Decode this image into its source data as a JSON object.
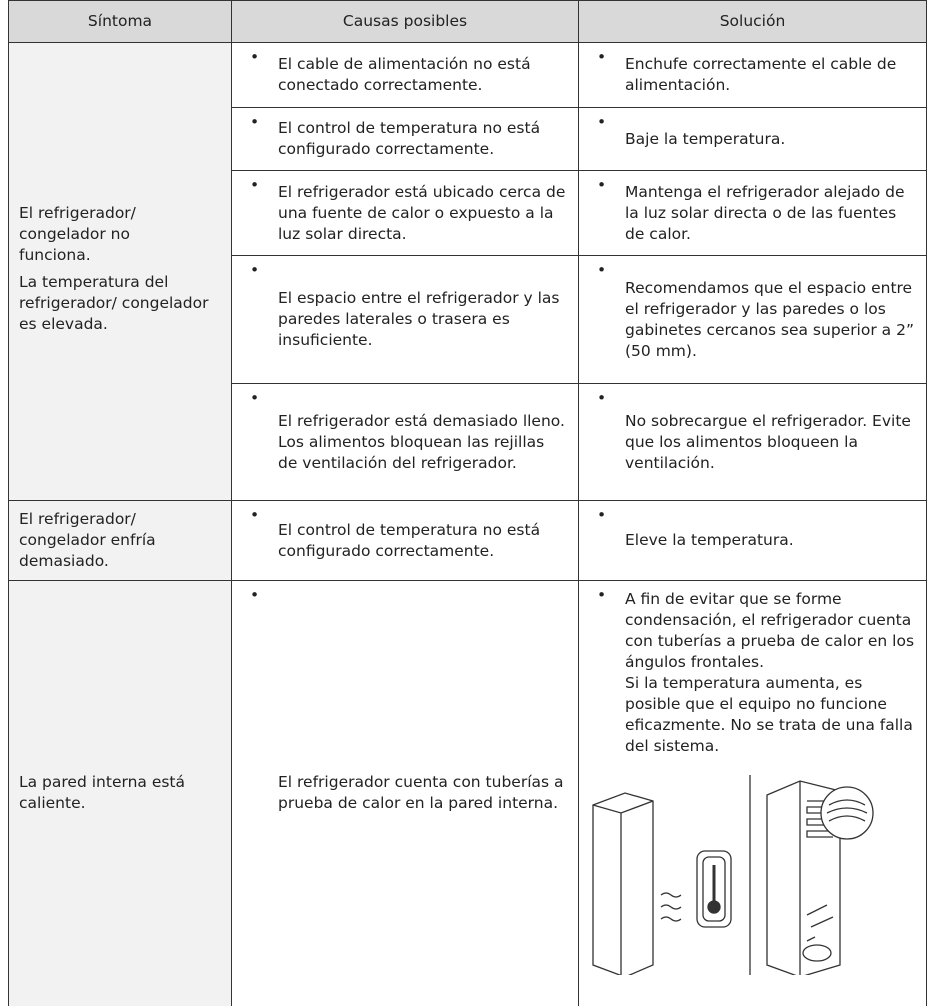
{
  "table": {
    "header": [
      "Síntoma",
      "Causas posibles",
      "Solución"
    ],
    "rows": [
      {
        "symptom": [
          "El refrigerador/ congelador no funciona.",
          "La temperatura del refrigerador/ congelador es elevada."
        ],
        "items": [
          {
            "cause": "El cable de alimentación no está conectado correctamente.",
            "solution": [
              "Enchufe correctamente el cable de alimentación."
            ]
          },
          {
            "cause": "El control de temperatura no está configurado correctamente.",
            "solution": [
              "Baje la temperatura."
            ]
          },
          {
            "cause": "El refrigerador está ubicado cerca de una fuente de calor o expuesto a la luz solar directa.",
            "solution": [
              "Mantenga el refrigerador alejado de la luz solar directa o de las fuentes de calor."
            ]
          },
          {
            "cause": "El espacio entre el refrigerador y las paredes laterales o trasera es insuficiente.",
            "solution": [
              "Recomendamos que el espacio entre el refrigerador y las paredes o los gabinetes cercanos sea superior a 2” (50 mm)."
            ]
          },
          {
            "cause": "El refrigerador está demasiado lleno. Los alimentos bloquean las rejillas de ventilación del refrigerador.",
            "solution": [
              "No sobrecargue el refrigerador. Evite que los alimentos bloqueen la ventilación."
            ]
          }
        ]
      },
      {
        "symptom": [
          "El refrigerador/ congelador enfría demasiado."
        ],
        "items": [
          {
            "cause": "El control de temperatura no está configurado correctamente.",
            "solution": [
              "Eleve la temperatura."
            ]
          }
        ]
      },
      {
        "symptom": [
          "La pared interna está caliente."
        ],
        "items": [
          {
            "cause": "El refrigerador cuenta con tuberías a prueba de calor en la pared interna.",
            "solution": [
              "A fin de evitar que se forme condensación, el refrigerador cuenta con tuberías a prueba de calor en los ángulos frontales.",
              "Si la temperatura aumenta, es posible que el equipo no funcione eficazmente. No se trata de una falla del sistema."
            ]
          }
        ]
      }
    ]
  }
}
